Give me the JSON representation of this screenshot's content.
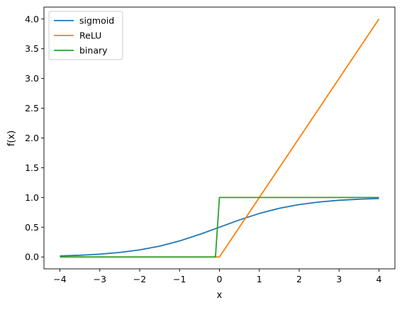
{
  "chart_data": {
    "type": "line",
    "title": "",
    "xlabel": "x",
    "ylabel": "f(x)",
    "xlim": [
      -4.4,
      4.4
    ],
    "ylim": [
      -0.2,
      4.2
    ],
    "xticks": [
      -4,
      -3,
      -2,
      -1,
      0,
      1,
      2,
      3,
      4
    ],
    "xtick_labels": [
      "−4",
      "−3",
      "−2",
      "−1",
      "0",
      "1",
      "2",
      "3",
      "4"
    ],
    "yticks": [
      0,
      0.5,
      1,
      1.5,
      2,
      2.5,
      3,
      3.5,
      4
    ],
    "ytick_labels": [
      "0.0",
      "0.5",
      "1.0",
      "1.5",
      "2.0",
      "2.5",
      "3.0",
      "3.5",
      "4.0"
    ],
    "grid": false,
    "legend_position": "top-left",
    "series": [
      {
        "name": "sigmoid",
        "color": "#1f77b4",
        "x": [
          -4,
          -3.5,
          -3,
          -2.5,
          -2,
          -1.5,
          -1,
          -0.5,
          0,
          0.5,
          1,
          1.5,
          2,
          2.5,
          3,
          3.5,
          4
        ],
        "y": [
          0.018,
          0.029,
          0.047,
          0.076,
          0.119,
          0.182,
          0.269,
          0.378,
          0.5,
          0.622,
          0.731,
          0.818,
          0.881,
          0.924,
          0.953,
          0.971,
          0.982
        ]
      },
      {
        "name": "ReLU",
        "color": "#ff7f0e",
        "x": [
          -4,
          0,
          4
        ],
        "y": [
          0,
          0,
          4
        ]
      },
      {
        "name": "binary",
        "color": "#2ca02c",
        "x": [
          -4,
          -0.1,
          0,
          4
        ],
        "y": [
          0,
          0,
          1,
          1
        ]
      }
    ]
  }
}
